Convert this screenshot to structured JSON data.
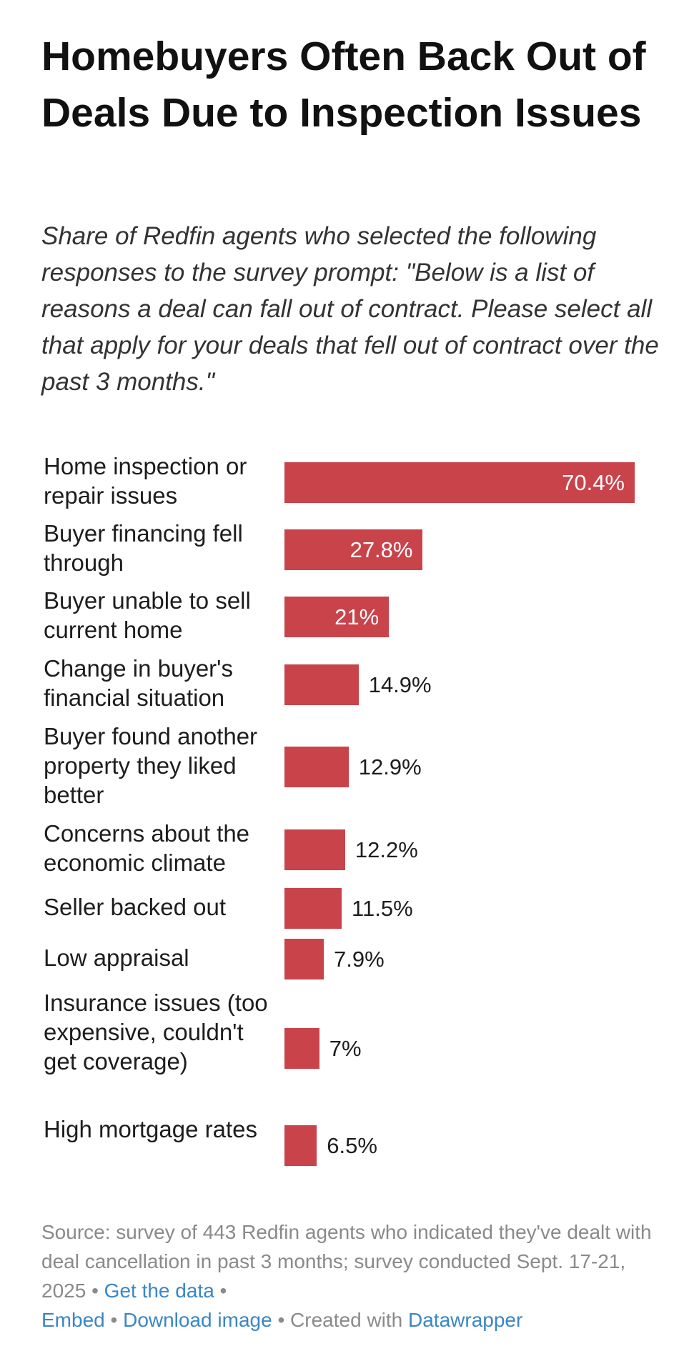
{
  "title": "Homebuyers Often Back Out of Deals Due to Inspection Issues",
  "subtitle": "Share of Redfin agents who selected the following responses to the survey prompt: \"Below is a list of reasons a deal can fall out of contract. Please select all that apply for your deals that fell out of contract over the past 3 months.\"",
  "chart_data": {
    "type": "bar",
    "orientation": "horizontal",
    "categories": [
      "Home inspection or repair issues",
      "Buyer financing fell through",
      "Buyer unable to sell current home",
      "Change in buyer's financial situation",
      "Buyer found another property they liked better",
      "Concerns about the economic climate",
      "Seller backed out",
      "Low appraisal",
      "Insurance issues (too expensive, couldn't get coverage)",
      "High mortgage rates"
    ],
    "values": [
      70.4,
      27.8,
      21,
      14.9,
      12.9,
      12.2,
      11.5,
      7.9,
      7,
      6.5
    ],
    "value_labels": [
      "70.4%",
      "27.8%",
      "21%",
      "14.9%",
      "12.9%",
      "12.2%",
      "11.5%",
      "7.9%",
      "7%",
      "6.5%"
    ],
    "unit": "%",
    "bar_color": "#c9434b",
    "grid": false
  },
  "footer": {
    "source": "Source: survey of 443 Redfin agents who indicated they've dealt with deal cancellation in past 3 months; survey conducted Sept. 17-21, 2025",
    "sep": " • ",
    "get_data": "Get the data",
    "embed": "Embed",
    "download": "Download image",
    "created_with": "Created with",
    "datawrapper": "Datawrapper",
    "link_color": "#3a86c6"
  }
}
